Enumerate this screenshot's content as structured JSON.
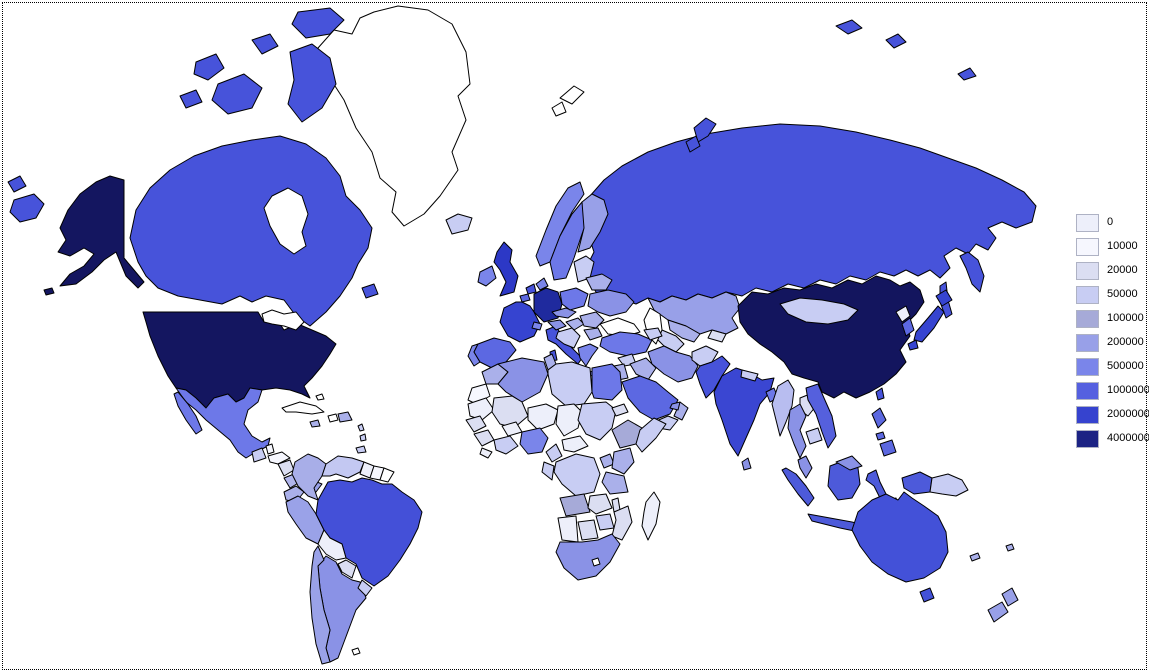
{
  "map": {
    "kind": "world-choropleth",
    "ocean_color": "#ffffff",
    "no_data_color": "#ffffff",
    "border_color": "#000000",
    "frame_style": "dotted-black",
    "regions": {
      "russia-west-fragment": {
        "name": "Russia (Chukotka west of antimeridian)",
        "color": "#4753da"
      },
      "united-states": {
        "name": "United States",
        "color": "#141660"
      },
      "canada": {
        "name": "Canada",
        "color": "#4753da"
      },
      "greenland": {
        "name": "Greenland",
        "color": "#ffffff"
      },
      "iceland": {
        "name": "Iceland",
        "color": "#c8cdf3"
      },
      "mexico": {
        "name": "Mexico",
        "color": "#6d78e8"
      },
      "guatemala": {
        "name": "Guatemala",
        "color": "#c8cdf3"
      },
      "belize": {
        "name": "Belize",
        "color": "#f6f7fe"
      },
      "honduras": {
        "name": "Honduras",
        "color": "#f6f7fe"
      },
      "nicaragua": {
        "name": "Nicaragua",
        "color": "#dbdef2"
      },
      "costa-rica": {
        "name": "Costa Rica",
        "color": "#b0b5ec"
      },
      "panama": {
        "name": "Panama",
        "color": "#98a0e8"
      },
      "cuba": {
        "name": "Cuba",
        "color": "#ffffff"
      },
      "haiti": {
        "name": "Haiti",
        "color": "#ffffff"
      },
      "dominican-republic": {
        "name": "Dominican Republic",
        "color": "#aab0ea"
      },
      "jamaica": {
        "name": "Jamaica",
        "color": "#aab0ea"
      },
      "bahamas": {
        "name": "Bahamas",
        "color": "#ffffff"
      },
      "lesser-antilles": {
        "name": "Lesser Antilles",
        "color": "#c8cdf3"
      },
      "colombia": {
        "name": "Colombia",
        "color": "#a8aee8"
      },
      "venezuela": {
        "name": "Venezuela",
        "color": "#c3c8f2"
      },
      "guyana": {
        "name": "Guyana",
        "color": "#edeffa"
      },
      "suriname": {
        "name": "Suriname",
        "color": "#f6f7fe"
      },
      "french-guiana": {
        "name": "French Guiana",
        "color": "#ffffff"
      },
      "ecuador": {
        "name": "Ecuador",
        "color": "#aab0ea"
      },
      "peru": {
        "name": "Peru",
        "color": "#9aa2e8"
      },
      "brazil": {
        "name": "Brazil",
        "color": "#4450d8"
      },
      "bolivia": {
        "name": "Bolivia",
        "color": "#edeffa"
      },
      "paraguay": {
        "name": "Paraguay",
        "color": "#dbdef2"
      },
      "chile": {
        "name": "Chile",
        "color": "#9aa2e8"
      },
      "argentina": {
        "name": "Argentina",
        "color": "#8a92e6"
      },
      "uruguay": {
        "name": "Uruguay",
        "color": "#c8cdf3"
      },
      "falkland-islands": {
        "name": "Falkland Islands",
        "color": "#ffffff"
      },
      "ireland": {
        "name": "Ireland",
        "color": "#7a85ea"
      },
      "united-kingdom": {
        "name": "United Kingdom",
        "color": "#2c38c6"
      },
      "portugal": {
        "name": "Portugal",
        "color": "#7a85ea"
      },
      "spain": {
        "name": "Spain",
        "color": "#5c68e2"
      },
      "france": {
        "name": "France",
        "color": "#3644d0"
      },
      "belgium": {
        "name": "Belgium",
        "color": "#5c68e2"
      },
      "netherlands": {
        "name": "Netherlands",
        "color": "#4753da"
      },
      "germany": {
        "name": "Germany",
        "color": "#1f2a9e"
      },
      "denmark": {
        "name": "Denmark",
        "color": "#7a85ea"
      },
      "norway": {
        "name": "Norway",
        "color": "#7a85ea"
      },
      "sweden": {
        "name": "Sweden",
        "color": "#6d78e8"
      },
      "finland": {
        "name": "Finland",
        "color": "#98a0e8"
      },
      "baltic-states": {
        "name": "Baltic states",
        "color": "#c8cdf3"
      },
      "poland": {
        "name": "Poland",
        "color": "#6d78e8"
      },
      "czech-slovakia": {
        "name": "Czechia / Slovakia",
        "color": "#8a92e6"
      },
      "austria": {
        "name": "Austria",
        "color": "#8a92e6"
      },
      "switzerland": {
        "name": "Switzerland",
        "color": "#7a85ea"
      },
      "italy": {
        "name": "Italy",
        "color": "#4753da"
      },
      "hungary": {
        "name": "Hungary",
        "color": "#aab0ea"
      },
      "balkans": {
        "name": "Western Balkans",
        "color": "#c8cdf3"
      },
      "romania": {
        "name": "Romania",
        "color": "#aab0ea"
      },
      "bulgaria": {
        "name": "Bulgaria",
        "color": "#aab0ea"
      },
      "greece": {
        "name": "Greece",
        "color": "#7a85ea"
      },
      "belarus": {
        "name": "Belarus",
        "color": "#aab0ea"
      },
      "ukraine": {
        "name": "Ukraine",
        "color": "#8a92e6"
      },
      "russia": {
        "name": "Russia",
        "color": "#4753da"
      },
      "svalbard": {
        "name": "Svalbard",
        "color": "#ffffff"
      },
      "turkey": {
        "name": "Turkey",
        "color": "#6d78e8"
      },
      "caucasus": {
        "name": "Georgia / Azerbaijan",
        "color": "#c8cdf3"
      },
      "syria": {
        "name": "Syria",
        "color": "#c8cdf3"
      },
      "iraq": {
        "name": "Iraq",
        "color": "#aab0ea"
      },
      "israel-jordan": {
        "name": "Israel / Jordan",
        "color": "#aab0ea"
      },
      "saudi-arabia": {
        "name": "Saudi Arabia",
        "color": "#5c68e2"
      },
      "yemen": {
        "name": "Yemen",
        "color": "#c8cdf3"
      },
      "oman": {
        "name": "Oman",
        "color": "#aab0ea"
      },
      "united-arab-emirates": {
        "name": "United Arab Emirates",
        "color": "#8a92e6"
      },
      "iran": {
        "name": "Iran",
        "color": "#8a92e6"
      },
      "afghanistan": {
        "name": "Afghanistan",
        "color": "#c8cdf3"
      },
      "pakistan": {
        "name": "Pakistan",
        "color": "#4753da"
      },
      "turkmenistan": {
        "name": "Turkmenistan",
        "color": "#c8cdf3"
      },
      "uzbekistan": {
        "name": "Uzbekistan",
        "color": "#aab0ea"
      },
      "kyrgyzstan-tajikistan": {
        "name": "Kyrgyzstan / Tajikistan",
        "color": "#dbdef2"
      },
      "kazakhstan": {
        "name": "Kazakhstan",
        "color": "#98a0e8"
      },
      "mongolia": {
        "name": "Mongolia",
        "color": "#c8cdf3"
      },
      "china": {
        "name": "China",
        "color": "#13155e"
      },
      "north-korea": {
        "name": "North Korea",
        "color": "#edeffa"
      },
      "south-korea": {
        "name": "South Korea",
        "color": "#5c68e2"
      },
      "japan": {
        "name": "Japan",
        "color": "#3644d0"
      },
      "taiwan": {
        "name": "Taiwan",
        "color": "#4753da"
      },
      "india": {
        "name": "India",
        "color": "#3a46d2"
      },
      "nepal": {
        "name": "Nepal",
        "color": "#c8cdf3"
      },
      "bangladesh": {
        "name": "Bangladesh",
        "color": "#6d78e8"
      },
      "sri-lanka": {
        "name": "Sri Lanka",
        "color": "#8a92e6"
      },
      "myanmar": {
        "name": "Myanmar",
        "color": "#b8bdf0"
      },
      "thailand": {
        "name": "Thailand",
        "color": "#8a92e6"
      },
      "laos": {
        "name": "Laos",
        "color": "#dbdef2"
      },
      "cambodia": {
        "name": "Cambodia",
        "color": "#c8cdf3"
      },
      "vietnam": {
        "name": "Vietnam",
        "color": "#5560dd"
      },
      "malaysia": {
        "name": "Malaysia",
        "color": "#8a92e6"
      },
      "indonesia": {
        "name": "Indonesia",
        "color": "#4d5ada"
      },
      "philippines": {
        "name": "Philippines",
        "color": "#5c68e0"
      },
      "papua-new-guinea": {
        "name": "Papua New Guinea",
        "color": "#c8cdf3"
      },
      "australia": {
        "name": "Australia",
        "color": "#4351d8"
      },
      "new-zealand": {
        "name": "New Zealand",
        "color": "#98a0e8"
      },
      "pacific-islands": {
        "name": "Pacific islands",
        "color": "#aab0ea"
      },
      "morocco": {
        "name": "Morocco",
        "color": "#aab0ea"
      },
      "western-sahara": {
        "name": "Western Sahara",
        "color": "#f6f7fe"
      },
      "algeria": {
        "name": "Algeria",
        "color": "#8a92e6"
      },
      "tunisia": {
        "name": "Tunisia",
        "color": "#aab0ea"
      },
      "libya": {
        "name": "Libya",
        "color": "#c8cdf3"
      },
      "egypt": {
        "name": "Egypt",
        "color": "#6d78e8"
      },
      "mauritania": {
        "name": "Mauritania",
        "color": "#edeffa"
      },
      "mali": {
        "name": "Mali",
        "color": "#dbdef2"
      },
      "niger": {
        "name": "Niger",
        "color": "#edeffa"
      },
      "chad": {
        "name": "Chad",
        "color": "#edeffa"
      },
      "sudan": {
        "name": "Sudan",
        "color": "#c8cdf3"
      },
      "eritrea": {
        "name": "Eritrea",
        "color": "#dbdef2"
      },
      "ethiopia": {
        "name": "Ethiopia",
        "color": "#a6aad8"
      },
      "somalia": {
        "name": "Somalia",
        "color": "#c8cdf3"
      },
      "senegal-region": {
        "name": "Senegal region",
        "color": "#dbdef2"
      },
      "guinea-region": {
        "name": "Guinea region",
        "color": "#dbdef2"
      },
      "sierra-leone-liberia": {
        "name": "Sierra Leone / Liberia",
        "color": "#edeffa"
      },
      "ivory-coast-ghana": {
        "name": "Côte d'Ivoire / Ghana",
        "color": "#c8cdf3"
      },
      "burkina-faso": {
        "name": "Burkina Faso",
        "color": "#edeffa"
      },
      "nigeria": {
        "name": "Nigeria",
        "color": "#7a85ea"
      },
      "cameroon": {
        "name": "Cameroon",
        "color": "#c8cdf3"
      },
      "central-african-republic": {
        "name": "Central African Republic",
        "color": "#edeffa"
      },
      "congo-gabon": {
        "name": "Congo / Gabon",
        "color": "#c8cdf3"
      },
      "dr-congo": {
        "name": "DR Congo",
        "color": "#c8cdf3"
      },
      "uganda": {
        "name": "Uganda",
        "color": "#aab0ea"
      },
      "kenya": {
        "name": "Kenya",
        "color": "#aab0ea"
      },
      "tanzania": {
        "name": "Tanzania",
        "color": "#aab0ea"
      },
      "angola": {
        "name": "Angola",
        "color": "#a6aad8"
      },
      "zambia": {
        "name": "Zambia",
        "color": "#dbdef2"
      },
      "malawi": {
        "name": "Malawi",
        "color": "#dbdef2"
      },
      "mozambique": {
        "name": "Mozambique",
        "color": "#dbdef2"
      },
      "zimbabwe": {
        "name": "Zimbabwe",
        "color": "#c8cdf3"
      },
      "namibia": {
        "name": "Namibia",
        "color": "#edeffa"
      },
      "botswana": {
        "name": "Botswana",
        "color": "#dbdef2"
      },
      "south-africa": {
        "name": "South Africa",
        "color": "#8a92e6"
      },
      "lesotho": {
        "name": "Lesotho",
        "color": "#ffffff"
      },
      "madagascar": {
        "name": "Madagascar",
        "color": "#edeffa"
      }
    }
  },
  "legend": {
    "position": "right",
    "items": [
      {
        "label": "0",
        "color": "#edeffa"
      },
      {
        "label": "10000",
        "color": "#f6f7fe"
      },
      {
        "label": "20000",
        "color": "#dbdef2"
      },
      {
        "label": "50000",
        "color": "#c8cdf3"
      },
      {
        "label": "100000",
        "color": "#a6aad8"
      },
      {
        "label": "200000",
        "color": "#98a0e8"
      },
      {
        "label": "500000",
        "color": "#7a85ea"
      },
      {
        "label": "1000000",
        "color": "#5560e0"
      },
      {
        "label": "2000000",
        "color": "#3643cf"
      },
      {
        "label": "4000000",
        "color": "#1c2384"
      }
    ]
  }
}
